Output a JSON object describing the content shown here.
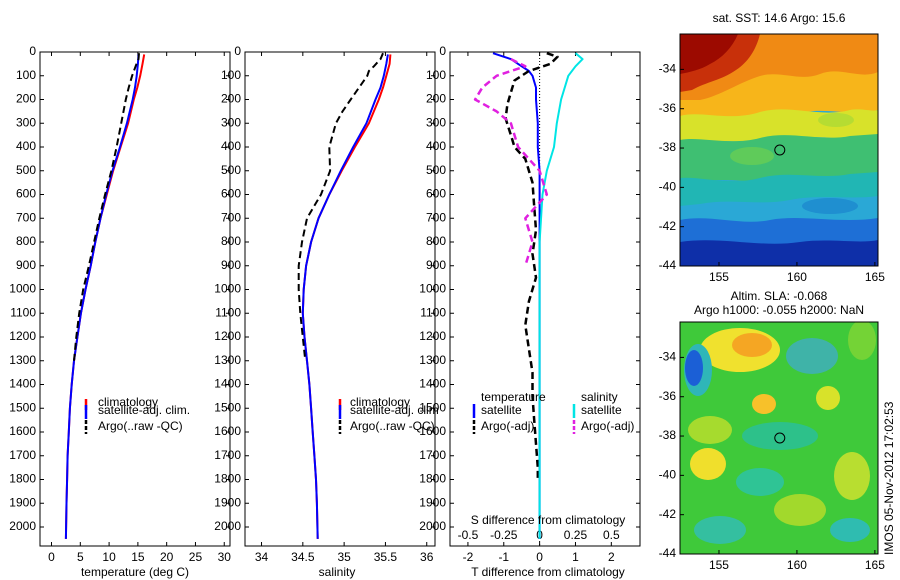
{
  "chart_data": [
    {
      "type": "line",
      "panel": "temperature",
      "xlabel": "temperature (deg C)",
      "ylabel": "",
      "xlim": [
        -2,
        31
      ],
      "ylim": [
        2080,
        0
      ],
      "xticks": [
        0,
        5,
        10,
        15,
        20,
        25,
        30
      ],
      "yticks": [
        0,
        100,
        200,
        300,
        400,
        500,
        600,
        700,
        800,
        900,
        1000,
        1100,
        1200,
        1300,
        1400,
        1500,
        1600,
        1700,
        1800,
        1900,
        2000
      ],
      "legend": [
        "climatology",
        "satellite-adj. clim.",
        "Argo(..raw -QC)"
      ],
      "series": [
        {
          "name": "climatology",
          "color": "#ff0000",
          "width": 2,
          "dash": "",
          "depth": [
            10,
            50,
            100,
            150,
            200,
            300,
            400,
            500,
            600,
            700,
            800,
            900,
            1000,
            1100,
            1200,
            1300,
            1400,
            1500,
            1600,
            1700,
            1800,
            1900,
            2050
          ],
          "values": [
            16.1,
            15.8,
            15.4,
            14.9,
            14.3,
            13.3,
            12.0,
            10.7,
            9.6,
            8.5,
            7.6,
            6.8,
            5.9,
            5.1,
            4.5,
            3.9,
            3.5,
            3.2,
            3.0,
            2.8,
            2.7,
            2.6,
            2.5
          ]
        },
        {
          "name": "satellite-adj. clim.",
          "color": "#0000ff",
          "width": 2,
          "dash": "",
          "depth": [
            10,
            50,
            100,
            150,
            200,
            300,
            400,
            500,
            600,
            700,
            800,
            900,
            1000,
            1100,
            1200,
            1300,
            1400,
            1500,
            1600,
            1700,
            1800,
            1900,
            2050
          ],
          "values": [
            15.1,
            15.0,
            14.8,
            14.5,
            14.1,
            13.1,
            11.9,
            10.6,
            9.5,
            8.5,
            7.6,
            6.8,
            5.9,
            5.1,
            4.5,
            3.9,
            3.5,
            3.2,
            3.0,
            2.8,
            2.7,
            2.6,
            2.5
          ]
        },
        {
          "name": "Argo(..raw -QC)",
          "color": "#000000",
          "width": 2,
          "dash": "7,4",
          "depth": [
            5,
            30,
            60,
            100,
            150,
            200,
            250,
            300,
            400,
            500,
            600,
            700,
            800,
            900,
            1000,
            1100,
            1200,
            1300
          ],
          "values": [
            15.2,
            15.1,
            14.6,
            14.0,
            13.4,
            12.9,
            12.5,
            12.1,
            11.3,
            10.4,
            9.3,
            8.3,
            7.4,
            6.5,
            5.5,
            4.8,
            4.3,
            3.9
          ]
        }
      ]
    },
    {
      "type": "line",
      "panel": "salinity",
      "xlabel": "salinity",
      "ylabel": "",
      "xlim": [
        33.8,
        36.1
      ],
      "ylim": [
        2080,
        0
      ],
      "xticks": [
        34,
        34.5,
        35,
        35.5,
        36
      ],
      "yticks": [
        0,
        100,
        200,
        300,
        400,
        500,
        600,
        700,
        800,
        900,
        1000,
        1100,
        1200,
        1300,
        1400,
        1500,
        1600,
        1700,
        1800,
        1900,
        2000
      ],
      "legend": [
        "climatology",
        "satellite-adj. clim",
        "Argo(..raw -QC)"
      ],
      "series": [
        {
          "name": "climatology",
          "color": "#ff0000",
          "width": 2,
          "dash": "",
          "depth": [
            10,
            50,
            100,
            150,
            200,
            300,
            400,
            500,
            600,
            700,
            800,
            900,
            1000,
            1100,
            1200,
            1300,
            1400,
            1500,
            1600,
            1700,
            1800,
            1900,
            2050
          ],
          "values": [
            35.56,
            35.55,
            35.51,
            35.47,
            35.42,
            35.3,
            35.13,
            34.97,
            34.82,
            34.69,
            34.6,
            34.54,
            34.51,
            34.5,
            34.52,
            34.55,
            34.58,
            34.6,
            34.62,
            34.64,
            34.66,
            34.67,
            34.68
          ]
        },
        {
          "name": "satellite-adj. clim",
          "color": "#0000ff",
          "width": 2,
          "dash": "",
          "depth": [
            10,
            50,
            100,
            150,
            200,
            300,
            400,
            500,
            600,
            700,
            800,
            900,
            1000,
            1100,
            1200,
            1300,
            1400,
            1500,
            1600,
            1700,
            1800,
            1900,
            2050
          ],
          "values": [
            35.53,
            35.51,
            35.48,
            35.44,
            35.38,
            35.27,
            35.11,
            34.96,
            34.82,
            34.69,
            34.6,
            34.54,
            34.51,
            34.5,
            34.52,
            34.55,
            34.58,
            34.6,
            34.62,
            34.64,
            34.66,
            34.67,
            34.68
          ]
        },
        {
          "name": "Argo(..raw -QC)",
          "color": "#000000",
          "width": 2,
          "dash": "7,4",
          "depth": [
            5,
            30,
            60,
            80,
            100,
            150,
            200,
            250,
            300,
            400,
            500,
            600,
            700,
            800,
            900,
            1000,
            1100,
            1200,
            1300
          ],
          "values": [
            35.47,
            35.44,
            35.36,
            35.3,
            35.28,
            35.18,
            35.08,
            34.98,
            34.9,
            34.82,
            34.83,
            34.72,
            34.55,
            34.49,
            34.45,
            34.45,
            34.47,
            34.5,
            34.53
          ]
        }
      ]
    },
    {
      "type": "line",
      "panel": "difference",
      "xlabel": "T difference from climatology",
      "xlabel2": "S difference from climatology",
      "ylabel": "",
      "xlim": [
        -2.5,
        2.8
      ],
      "ylim": [
        2080,
        0
      ],
      "xticks": [
        -2,
        -1,
        0,
        1,
        2
      ],
      "xticks2": [
        "-0.5",
        "-0.25",
        "0",
        "0.25",
        "0.5"
      ],
      "yticks": [
        0,
        100,
        200,
        300,
        400,
        500,
        600,
        700,
        800,
        900,
        1000,
        1100,
        1200,
        1300,
        1400,
        1500,
        1600,
        1700,
        1800,
        1900,
        2000
      ],
      "legend": {
        "temperature_title": "temperature",
        "salinity_title": "salinity",
        "items": [
          "satellite",
          "Argo(-adj)",
          "satellite",
          "Argo(-adj)"
        ]
      },
      "series": [
        {
          "name": "satellite",
          "group": "temperature",
          "color": "#0000ff",
          "width": 2,
          "dash": "",
          "depth": [
            5,
            15,
            30,
            50,
            80,
            100,
            150,
            200,
            300,
            400,
            500,
            600,
            800,
            1000,
            1200,
            1500,
            1800,
            2050
          ],
          "values": [
            -1.3,
            -1.1,
            -0.8,
            -0.6,
            -0.3,
            -0.2,
            -0.1,
            -0.1,
            -0.05,
            -0.05,
            0,
            0,
            0,
            0,
            0,
            0,
            0,
            0
          ]
        },
        {
          "name": "Argo(-adj)",
          "group": "temperature",
          "color": "#000000",
          "width": 2.5,
          "dash": "7,4",
          "depth": [
            5,
            20,
            50,
            80,
            120,
            170,
            220,
            280,
            350,
            400,
            450,
            550,
            650,
            750,
            850,
            950,
            1050,
            1150,
            1250,
            1350,
            1450,
            1550,
            1650,
            1750,
            1800
          ],
          "values": [
            0.2,
            0.5,
            0.3,
            -0.3,
            -0.7,
            -0.8,
            -0.9,
            -0.95,
            -0.8,
            -0.7,
            -0.4,
            -0.2,
            -0.15,
            -0.1,
            -0.2,
            -0.1,
            -0.3,
            -0.4,
            -0.3,
            -0.2,
            -0.2,
            -0.15,
            -0.1,
            -0.05,
            -0.05
          ]
        },
        {
          "name": "satellite",
          "group": "salinity",
          "color": "#00e5e5",
          "width": 2,
          "dash": "",
          "depth": [
            5,
            30,
            60,
            100,
            200,
            300,
            400,
            500,
            600,
            800,
            1000,
            1200,
            1500,
            1800,
            2050
          ],
          "values": [
            0.25,
            0.3,
            0.25,
            0.2,
            0.15,
            0.12,
            0.1,
            0.05,
            0.02,
            0,
            0,
            0,
            0,
            0,
            0
          ]
        },
        {
          "name": "Argo(-adj)",
          "group": "salinity",
          "color": "#e020e0",
          "width": 2.5,
          "dash": "7,4",
          "depth": [
            30,
            60,
            100,
            150,
            200,
            250,
            300,
            400,
            500,
            600,
            700,
            800,
            900
          ],
          "values": [
            -0.2,
            -0.1,
            -0.3,
            -0.4,
            -0.45,
            -0.3,
            -0.2,
            -0.15,
            0,
            0.05,
            -0.1,
            -0.05,
            -0.1
          ]
        }
      ]
    },
    {
      "type": "heatmap",
      "panel": "sst-map",
      "title": "sat. SST: 14.6 Argo: 15.6",
      "xlim": [
        152.5,
        165.2
      ],
      "ylim": [
        -44,
        -32.2
      ],
      "xticks": [
        155,
        160,
        165
      ],
      "yticks": [
        -34,
        -36,
        -38,
        -40,
        -42,
        -44
      ],
      "marker": {
        "lon": 158.9,
        "lat": -38.1
      }
    },
    {
      "type": "heatmap",
      "panel": "sla-map",
      "title": "Altim. SLA: -0.068",
      "subtitle": "Argo h1000: -0.055 h2000: NaN",
      "xlim": [
        152.5,
        165.2
      ],
      "ylim": [
        -44,
        -32.2
      ],
      "xticks": [
        155,
        160,
        165
      ],
      "yticks": [
        -34,
        -36,
        -38,
        -40,
        -42,
        -44
      ],
      "marker": {
        "lon": 158.9,
        "lat": -38.1
      }
    }
  ],
  "watermark": "IMOS 05-Nov-2012 17:02:53"
}
